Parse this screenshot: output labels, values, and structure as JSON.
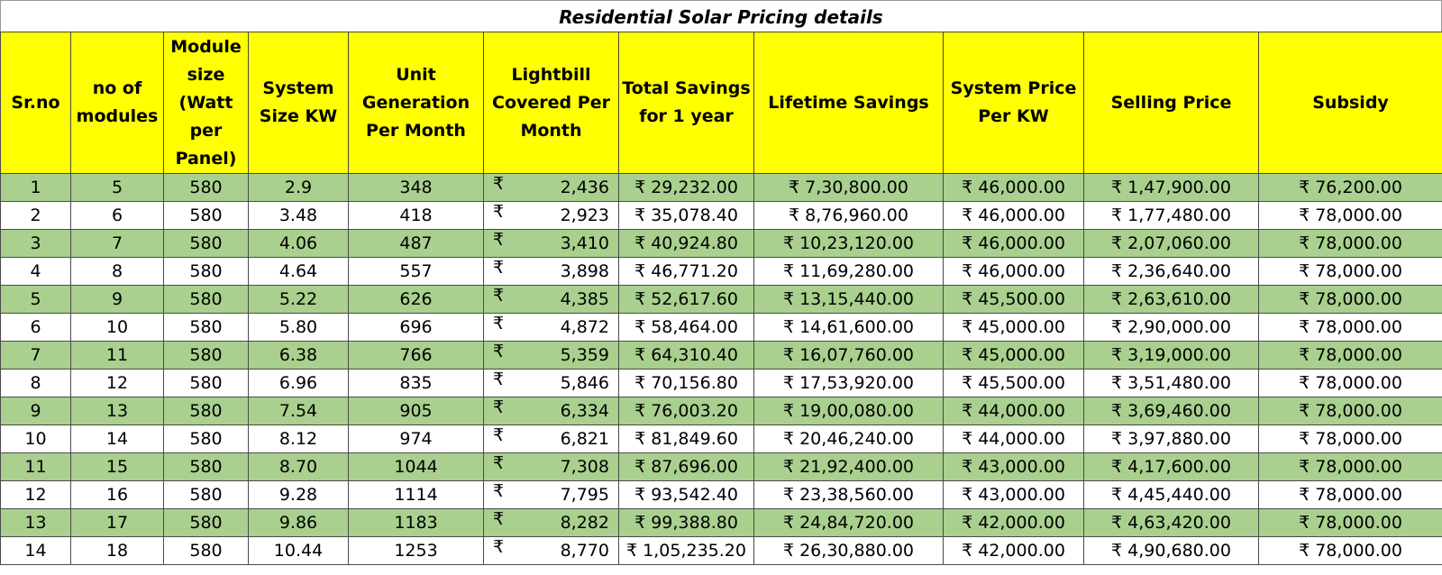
{
  "title": "Residential Solar Pricing details",
  "colors": {
    "header_bg": "#ffff00",
    "stripe_bg": "#a9d08e"
  },
  "headers": [
    "Sr.no",
    "no of modules",
    "Module size (Watt per Panel)",
    "System Size KW",
    "Unit Generation Per Month",
    "Lightbill Covered Per Month",
    "Total Savings for 1 year",
    "Lifetime Savings",
    "System Price Per KW",
    "Selling Price",
    "Subsidy"
  ],
  "rupee": "₹",
  "rows": [
    [
      "1",
      "5",
      "580",
      "2.9",
      "348",
      "2,436",
      "₹ 29,232.00",
      "₹ 7,30,800.00",
      "₹ 46,000.00",
      "₹ 1,47,900.00",
      "₹ 76,200.00"
    ],
    [
      "2",
      "6",
      "580",
      "3.48",
      "418",
      "2,923",
      "₹ 35,078.40",
      "₹ 8,76,960.00",
      "₹ 46,000.00",
      "₹ 1,77,480.00",
      "₹ 78,000.00"
    ],
    [
      "3",
      "7",
      "580",
      "4.06",
      "487",
      "3,410",
      "₹ 40,924.80",
      "₹ 10,23,120.00",
      "₹ 46,000.00",
      "₹ 2,07,060.00",
      "₹ 78,000.00"
    ],
    [
      "4",
      "8",
      "580",
      "4.64",
      "557",
      "3,898",
      "₹ 46,771.20",
      "₹ 11,69,280.00",
      "₹ 46,000.00",
      "₹ 2,36,640.00",
      "₹ 78,000.00"
    ],
    [
      "5",
      "9",
      "580",
      "5.22",
      "626",
      "4,385",
      "₹ 52,617.60",
      "₹ 13,15,440.00",
      "₹ 45,500.00",
      "₹ 2,63,610.00",
      "₹ 78,000.00"
    ],
    [
      "6",
      "10",
      "580",
      "5.80",
      "696",
      "4,872",
      "₹ 58,464.00",
      "₹ 14,61,600.00",
      "₹ 45,000.00",
      "₹ 2,90,000.00",
      "₹ 78,000.00"
    ],
    [
      "7",
      "11",
      "580",
      "6.38",
      "766",
      "5,359",
      "₹ 64,310.40",
      "₹ 16,07,760.00",
      "₹ 45,000.00",
      "₹ 3,19,000.00",
      "₹ 78,000.00"
    ],
    [
      "8",
      "12",
      "580",
      "6.96",
      "835",
      "5,846",
      "₹ 70,156.80",
      "₹ 17,53,920.00",
      "₹ 45,500.00",
      "₹ 3,51,480.00",
      "₹ 78,000.00"
    ],
    [
      "9",
      "13",
      "580",
      "7.54",
      "905",
      "6,334",
      "₹ 76,003.20",
      "₹ 19,00,080.00",
      "₹ 44,000.00",
      "₹ 3,69,460.00",
      "₹ 78,000.00"
    ],
    [
      "10",
      "14",
      "580",
      "8.12",
      "974",
      "6,821",
      "₹ 81,849.60",
      "₹ 20,46,240.00",
      "₹ 44,000.00",
      "₹ 3,97,880.00",
      "₹ 78,000.00"
    ],
    [
      "11",
      "15",
      "580",
      "8.70",
      "1044",
      "7,308",
      "₹ 87,696.00",
      "₹ 21,92,400.00",
      "₹ 43,000.00",
      "₹ 4,17,600.00",
      "₹ 78,000.00"
    ],
    [
      "12",
      "16",
      "580",
      "9.28",
      "1114",
      "7,795",
      "₹ 93,542.40",
      "₹ 23,38,560.00",
      "₹ 43,000.00",
      "₹ 4,45,440.00",
      "₹ 78,000.00"
    ],
    [
      "13",
      "17",
      "580",
      "9.86",
      "1183",
      "8,282",
      "₹ 99,388.80",
      "₹ 24,84,720.00",
      "₹ 42,000.00",
      "₹ 4,63,420.00",
      "₹ 78,000.00"
    ],
    [
      "14",
      "18",
      "580",
      "10.44",
      "1253",
      "8,770",
      "₹ 1,05,235.20",
      "₹ 26,30,880.00",
      "₹ 42,000.00",
      "₹ 4,90,680.00",
      "₹ 78,000.00"
    ]
  ]
}
